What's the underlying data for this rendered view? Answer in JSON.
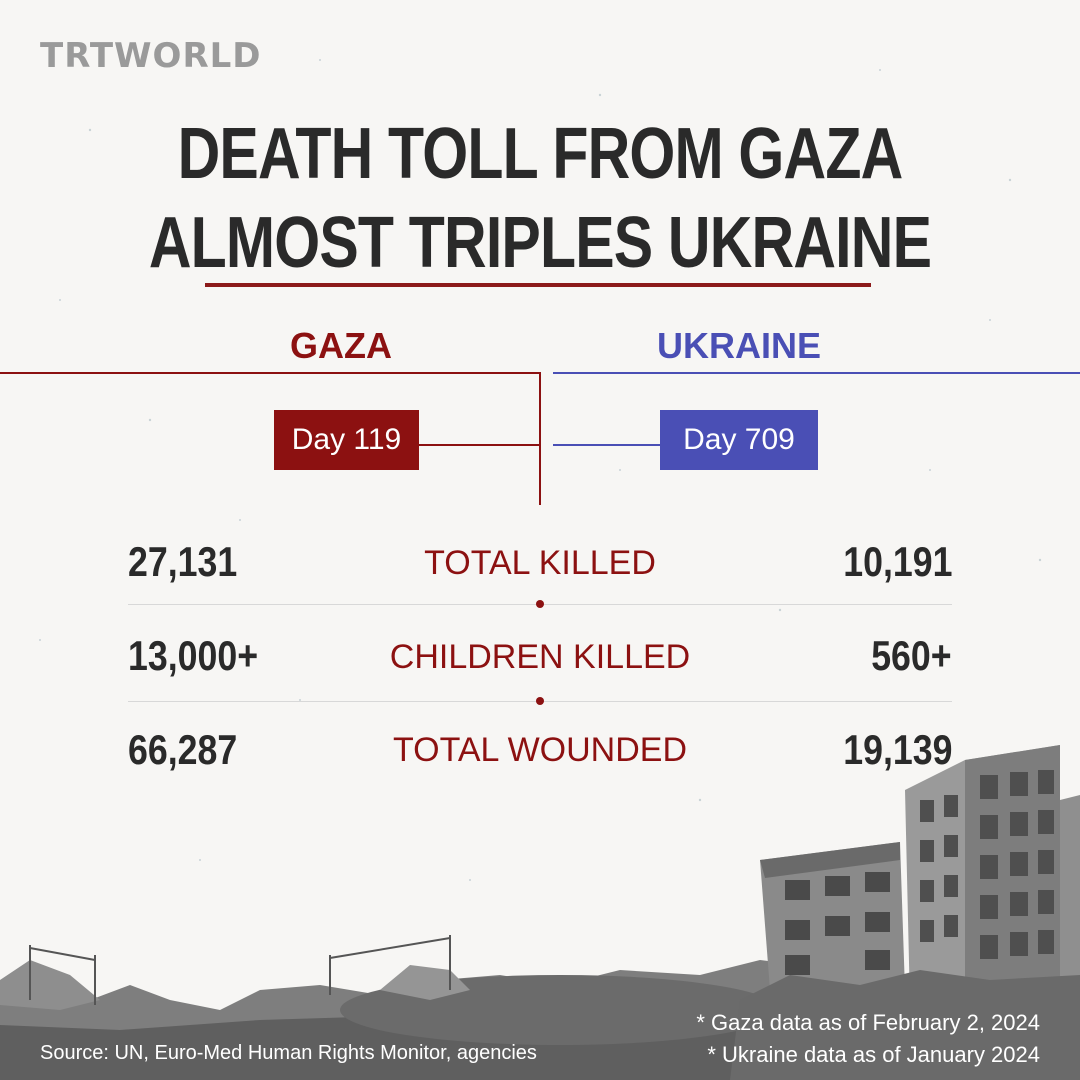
{
  "brand": {
    "logo_text": "TRTWORLD"
  },
  "headline": {
    "line1": "DEATH TOLL FROM GAZA",
    "line2": "ALMOST TRIPLES UKRAINE"
  },
  "columns": {
    "gaza": {
      "label": "GAZA",
      "day": "Day 119",
      "color": "#8c1111"
    },
    "ukraine": {
      "label": "UKRAINE",
      "day": "Day 709",
      "color": "#4a4fb5"
    }
  },
  "stats": [
    {
      "label": "TOTAL KILLED",
      "gaza": "27,131",
      "ukraine": "10,191"
    },
    {
      "label": "CHILDREN KILLED",
      "gaza": "13,000+",
      "ukraine": "560+"
    },
    {
      "label": "TOTAL WOUNDED",
      "gaza": "66,287",
      "ukraine": "19,139"
    }
  ],
  "footer": {
    "source": "Source: UN, Euro-Med Human Rights Monitor, agencies",
    "note_gaza": "* Gaza data as of February 2, 2024",
    "note_ukraine": "* Ukraine data as of January 2024"
  }
}
